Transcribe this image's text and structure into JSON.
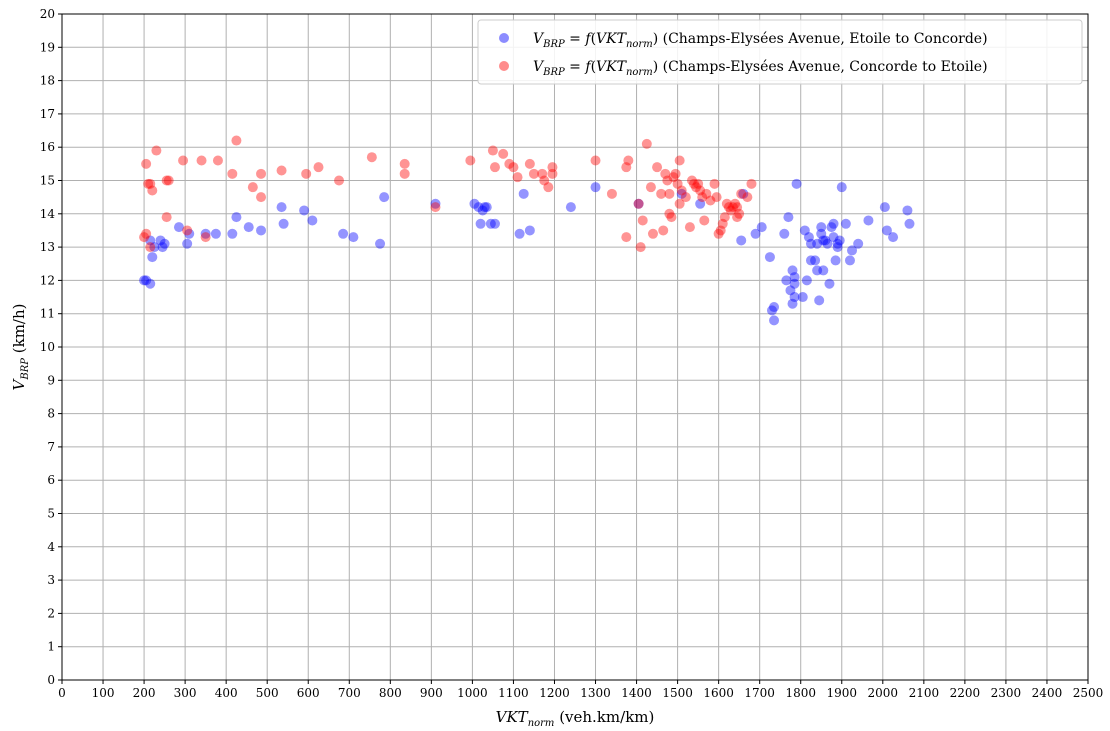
{
  "chart_data": {
    "type": "scatter",
    "xlabel": {
      "main": "VKT",
      "sub": "norm",
      "rest": " (veh.km/km)"
    },
    "ylabel": {
      "main": "V",
      "sub": "BRP",
      "rest": " (km/h)"
    },
    "xlim": [
      0,
      2500
    ],
    "ylim": [
      0,
      20
    ],
    "xticks": [
      0,
      100,
      200,
      300,
      400,
      500,
      600,
      700,
      800,
      900,
      1000,
      1100,
      1200,
      1300,
      1400,
      1500,
      1600,
      1700,
      1800,
      1900,
      2000,
      2100,
      2200,
      2300,
      2400,
      2500
    ],
    "yticks": [
      0,
      1,
      2,
      3,
      4,
      5,
      6,
      7,
      8,
      9,
      10,
      11,
      12,
      13,
      14,
      15,
      16,
      17,
      18,
      19,
      20
    ],
    "grid": true,
    "legend_position": "top-right",
    "series": [
      {
        "name": "V_BRP = f(VKT_norm) (Champs-Elysées Avenue, Etoile to Concorde)",
        "legend": {
          "lhs": "V",
          "lhs_sub": "BRP",
          "eq": " = ",
          "f": "f",
          "arg": "VKT",
          "arg_sub": "norm",
          "desc": " (Champs-Elysées Avenue, Etoile to Concorde)"
        },
        "color": "#0000ff",
        "points": [
          [
            200,
            12.0
          ],
          [
            205,
            12.0
          ],
          [
            215,
            11.9
          ],
          [
            215,
            13.2
          ],
          [
            220,
            12.7
          ],
          [
            225,
            13.0
          ],
          [
            240,
            13.2
          ],
          [
            245,
            13.0
          ],
          [
            250,
            13.1
          ],
          [
            285,
            13.6
          ],
          [
            305,
            13.1
          ],
          [
            310,
            13.4
          ],
          [
            350,
            13.4
          ],
          [
            375,
            13.4
          ],
          [
            415,
            13.4
          ],
          [
            425,
            13.9
          ],
          [
            455,
            13.6
          ],
          [
            485,
            13.5
          ],
          [
            535,
            14.2
          ],
          [
            540,
            13.7
          ],
          [
            590,
            14.1
          ],
          [
            610,
            13.8
          ],
          [
            685,
            13.4
          ],
          [
            710,
            13.3
          ],
          [
            775,
            13.1
          ],
          [
            785,
            14.5
          ],
          [
            910,
            14.3
          ],
          [
            1005,
            14.3
          ],
          [
            1015,
            14.2
          ],
          [
            1020,
            13.7
          ],
          [
            1025,
            14.1
          ],
          [
            1030,
            14.2
          ],
          [
            1035,
            14.2
          ],
          [
            1045,
            13.7
          ],
          [
            1055,
            13.7
          ],
          [
            1115,
            13.4
          ],
          [
            1125,
            14.6
          ],
          [
            1140,
            13.5
          ],
          [
            1240,
            14.2
          ],
          [
            1300,
            14.8
          ],
          [
            1405,
            14.3
          ],
          [
            1510,
            14.6
          ],
          [
            1555,
            14.3
          ],
          [
            1655,
            13.2
          ],
          [
            1660,
            14.6
          ],
          [
            1690,
            13.4
          ],
          [
            1705,
            13.6
          ],
          [
            1725,
            12.7
          ],
          [
            1730,
            11.1
          ],
          [
            1735,
            11.2
          ],
          [
            1735,
            10.8
          ],
          [
            1760,
            13.4
          ],
          [
            1765,
            12.0
          ],
          [
            1770,
            13.9
          ],
          [
            1775,
            11.7
          ],
          [
            1780,
            11.3
          ],
          [
            1780,
            12.3
          ],
          [
            1785,
            11.9
          ],
          [
            1785,
            11.5
          ],
          [
            1785,
            12.1
          ],
          [
            1790,
            14.9
          ],
          [
            1805,
            11.5
          ],
          [
            1810,
            13.5
          ],
          [
            1815,
            12.0
          ],
          [
            1820,
            13.3
          ],
          [
            1825,
            12.6
          ],
          [
            1825,
            13.1
          ],
          [
            1835,
            12.6
          ],
          [
            1840,
            12.3
          ],
          [
            1840,
            13.1
          ],
          [
            1845,
            11.4
          ],
          [
            1850,
            13.6
          ],
          [
            1850,
            13.4
          ],
          [
            1855,
            12.3
          ],
          [
            1855,
            13.2
          ],
          [
            1860,
            13.2
          ],
          [
            1865,
            13.1
          ],
          [
            1870,
            11.9
          ],
          [
            1875,
            13.6
          ],
          [
            1880,
            13.7
          ],
          [
            1880,
            13.3
          ],
          [
            1885,
            12.6
          ],
          [
            1890,
            13.0
          ],
          [
            1890,
            13.1
          ],
          [
            1895,
            13.2
          ],
          [
            1900,
            14.8
          ],
          [
            1910,
            13.7
          ],
          [
            1920,
            12.6
          ],
          [
            1925,
            12.9
          ],
          [
            1940,
            13.1
          ],
          [
            1965,
            13.8
          ],
          [
            2005,
            14.2
          ],
          [
            2010,
            13.5
          ],
          [
            2025,
            13.3
          ],
          [
            2060,
            14.1
          ],
          [
            2065,
            13.7
          ]
        ]
      },
      {
        "name": "V_BRP = f(VKT_norm) (Champs-Elysées Avenue, Concorde to Etoile)",
        "legend": {
          "lhs": "V",
          "lhs_sub": "BRP",
          "eq": " = ",
          "f": "f",
          "arg": "VKT",
          "arg_sub": "norm",
          "desc": " (Champs-Elysées Avenue, Concorde to Etoile)"
        },
        "color": "#ff0000",
        "points": [
          [
            200,
            13.3
          ],
          [
            205,
            13.4
          ],
          [
            205,
            15.5
          ],
          [
            210,
            14.9
          ],
          [
            215,
            13.0
          ],
          [
            215,
            14.9
          ],
          [
            220,
            14.7
          ],
          [
            230,
            15.9
          ],
          [
            255,
            15.0
          ],
          [
            260,
            15.0
          ],
          [
            255,
            13.9
          ],
          [
            295,
            15.6
          ],
          [
            305,
            13.5
          ],
          [
            340,
            15.6
          ],
          [
            350,
            13.3
          ],
          [
            380,
            15.6
          ],
          [
            415,
            15.2
          ],
          [
            425,
            16.2
          ],
          [
            465,
            14.8
          ],
          [
            485,
            15.2
          ],
          [
            485,
            14.5
          ],
          [
            535,
            15.3
          ],
          [
            595,
            15.2
          ],
          [
            625,
            15.4
          ],
          [
            675,
            15.0
          ],
          [
            755,
            15.7
          ],
          [
            835,
            15.5
          ],
          [
            835,
            15.2
          ],
          [
            910,
            14.2
          ],
          [
            995,
            15.6
          ],
          [
            1050,
            15.9
          ],
          [
            1055,
            15.4
          ],
          [
            1075,
            15.8
          ],
          [
            1090,
            15.5
          ],
          [
            1100,
            15.4
          ],
          [
            1110,
            15.1
          ],
          [
            1140,
            15.5
          ],
          [
            1150,
            15.2
          ],
          [
            1170,
            15.2
          ],
          [
            1175,
            15.0
          ],
          [
            1185,
            14.8
          ],
          [
            1195,
            15.4
          ],
          [
            1195,
            15.2
          ],
          [
            1300,
            15.6
          ],
          [
            1340,
            14.6
          ],
          [
            1375,
            13.3
          ],
          [
            1375,
            15.4
          ],
          [
            1380,
            15.6
          ],
          [
            1405,
            14.3
          ],
          [
            1410,
            13.0
          ],
          [
            1415,
            13.8
          ],
          [
            1425,
            16.1
          ],
          [
            1435,
            14.8
          ],
          [
            1440,
            13.4
          ],
          [
            1450,
            15.4
          ],
          [
            1460,
            14.6
          ],
          [
            1465,
            13.5
          ],
          [
            1470,
            15.2
          ],
          [
            1475,
            15.0
          ],
          [
            1480,
            14.0
          ],
          [
            1480,
            14.6
          ],
          [
            1485,
            13.9
          ],
          [
            1490,
            15.1
          ],
          [
            1495,
            15.2
          ],
          [
            1500,
            14.9
          ],
          [
            1505,
            15.6
          ],
          [
            1505,
            14.3
          ],
          [
            1510,
            14.7
          ],
          [
            1520,
            14.5
          ],
          [
            1530,
            13.6
          ],
          [
            1535,
            15.0
          ],
          [
            1540,
            14.9
          ],
          [
            1545,
            14.8
          ],
          [
            1550,
            14.9
          ],
          [
            1555,
            14.7
          ],
          [
            1560,
            14.5
          ],
          [
            1565,
            13.8
          ],
          [
            1570,
            14.6
          ],
          [
            1580,
            14.4
          ],
          [
            1590,
            14.9
          ],
          [
            1595,
            14.5
          ],
          [
            1600,
            13.4
          ],
          [
            1605,
            13.5
          ],
          [
            1610,
            13.7
          ],
          [
            1615,
            13.9
          ],
          [
            1620,
            14.3
          ],
          [
            1625,
            14.2
          ],
          [
            1630,
            14.1
          ],
          [
            1635,
            14.2
          ],
          [
            1640,
            14.3
          ],
          [
            1645,
            14.2
          ],
          [
            1645,
            13.9
          ],
          [
            1650,
            14.0
          ],
          [
            1655,
            14.6
          ],
          [
            1670,
            14.5
          ],
          [
            1680,
            14.9
          ]
        ]
      }
    ]
  }
}
